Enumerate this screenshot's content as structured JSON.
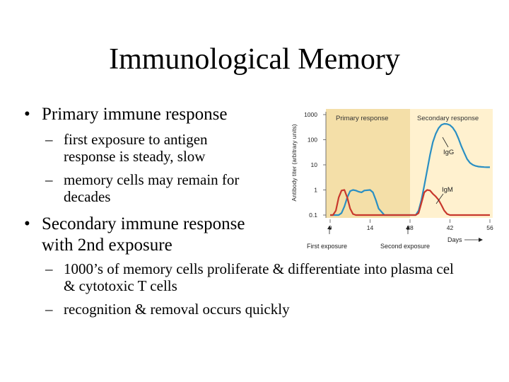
{
  "slide": {
    "title": "Immunological Memory",
    "bullet_char": "•",
    "dash_char": "–",
    "primary": {
      "heading": "Primary immune response",
      "subs": [
        {
          "line1": "first exposure to antigen",
          "line2": "response is steady, slow"
        },
        {
          "line1": "memory cells may remain for",
          "line2": "decades"
        }
      ]
    },
    "secondary": {
      "heading_line1": "Secondary immune response",
      "heading_line2": "with 2nd exposure",
      "subs": [
        {
          "line1": "1000’s of memory cells proliferate & differentiate into plasma cel",
          "line2": "& cytotoxic T cells"
        },
        {
          "line1": "recognition & removal occurs quickly",
          "line2": ""
        }
      ]
    }
  },
  "chart_data": {
    "type": "line",
    "ylabel": "Antibody titer (arbitrary units)",
    "xlabel": "Days",
    "y_scale": "log",
    "y_ticks": [
      "1000",
      "100",
      "10",
      "1",
      "0.1"
    ],
    "x_ticks": [
      "0",
      "14",
      "28",
      "42",
      "56"
    ],
    "x_range": [
      0,
      56
    ],
    "regions": [
      {
        "label": "Primary response",
        "x_start": 0,
        "x_end": 28,
        "color": "#f4dfa8"
      },
      {
        "label": "Secondary response",
        "x_start": 28,
        "x_end": 56,
        "color": "#fff1cf"
      }
    ],
    "annotations": [
      "First exposure",
      "Second exposure"
    ],
    "series": [
      {
        "name": "IgG",
        "color": "#2a8fc3",
        "x": [
          0,
          3,
          4,
          5,
          6,
          7,
          8,
          9,
          10,
          11,
          12,
          14,
          15,
          16,
          17,
          19,
          28,
          30,
          31,
          32,
          33,
          34,
          35,
          36,
          37,
          38,
          39,
          40,
          41,
          42,
          43,
          44,
          45,
          46,
          47,
          48,
          49,
          50,
          51,
          52,
          53,
          54,
          55,
          56
        ],
        "values": [
          0.1,
          0.1,
          0.12,
          0.22,
          0.5,
          0.9,
          1.0,
          0.95,
          0.85,
          0.8,
          0.95,
          1.0,
          0.8,
          0.4,
          0.18,
          0.1,
          0.1,
          0.1,
          0.15,
          0.4,
          1.5,
          6,
          25,
          80,
          170,
          290,
          390,
          430,
          420,
          380,
          300,
          200,
          110,
          55,
          30,
          17,
          12,
          10,
          9,
          8.5,
          8.3,
          8.1,
          8,
          8
        ]
      },
      {
        "name": "IgM",
        "color": "#c8372c",
        "x": [
          0,
          1,
          2,
          3,
          4,
          5,
          6,
          7,
          8,
          9,
          28,
          30,
          31,
          32,
          33,
          34,
          35,
          36,
          37,
          38,
          39,
          40,
          41,
          42,
          56
        ],
        "values": [
          0.1,
          0.1,
          0.15,
          0.5,
          0.95,
          1.0,
          0.5,
          0.18,
          0.11,
          0.1,
          0.1,
          0.1,
          0.12,
          0.3,
          0.8,
          1.0,
          0.95,
          0.7,
          0.55,
          0.4,
          0.25,
          0.15,
          0.11,
          0.1,
          0.1
        ]
      }
    ]
  }
}
